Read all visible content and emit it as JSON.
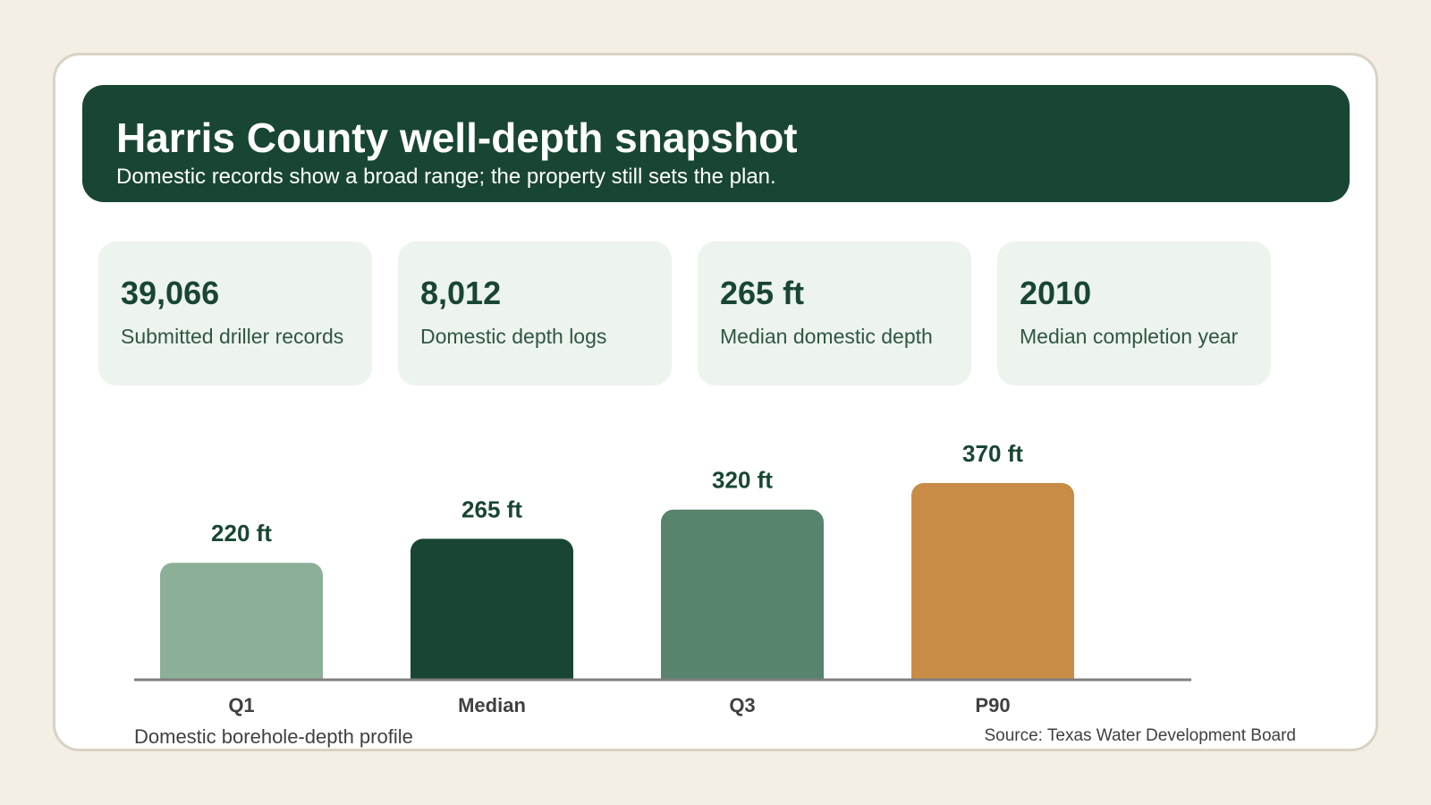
{
  "header": {
    "title": "Harris County well-depth snapshot",
    "subtitle": "Domestic records show a broad range; the property still sets the plan."
  },
  "stats": [
    {
      "value": "39,066",
      "label": "Submitted driller records"
    },
    {
      "value": "8,012",
      "label": "Domestic depth logs"
    },
    {
      "value": "265 ft",
      "label": "Median domestic depth"
    },
    {
      "value": "2010",
      "label": "Median completion year"
    }
  ],
  "chart_data": {
    "type": "bar",
    "title": "Domestic borehole-depth profile",
    "categories": [
      "Q1",
      "Median",
      "Q3",
      "P90"
    ],
    "values": [
      220,
      265,
      320,
      370
    ],
    "unit": "ft",
    "data_labels": [
      "220 ft",
      "265 ft",
      "320 ft",
      "370 ft"
    ],
    "colors": [
      "#8caf98",
      "#184632",
      "#58846d",
      "#c98c46"
    ],
    "ylim": [
      0,
      370
    ],
    "grid": false,
    "legend": "none"
  },
  "footer": {
    "source": "Source: Texas Water Development Board"
  }
}
